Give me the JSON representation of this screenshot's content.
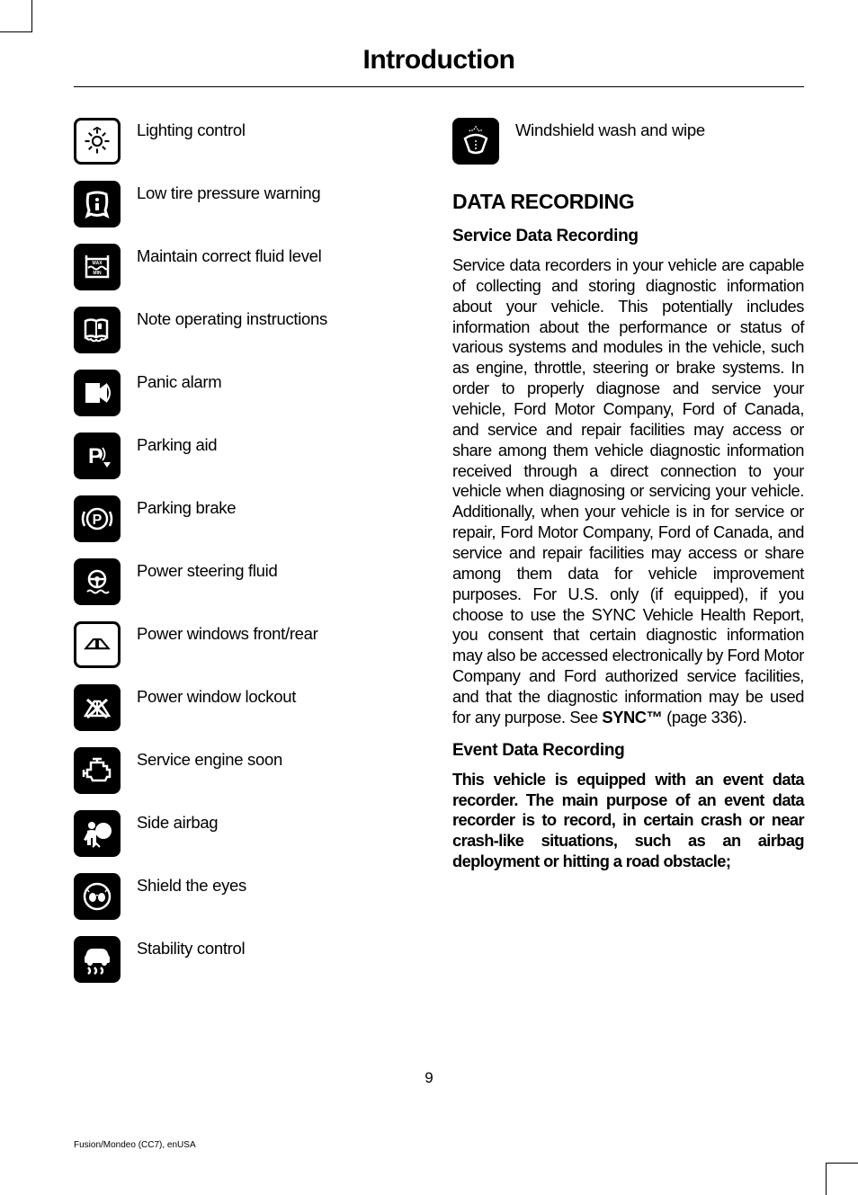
{
  "page": {
    "title": "Introduction",
    "number": "9",
    "footer": "Fusion/Mondeo (CC7), enUSA"
  },
  "left_icons": [
    {
      "name": "lighting-control-icon",
      "label": "Lighting control",
      "style": "outline"
    },
    {
      "name": "low-tire-pressure-icon",
      "label": "Low tire pressure warning",
      "style": "fill"
    },
    {
      "name": "fluid-level-icon",
      "label": "Maintain correct fluid level",
      "style": "fill"
    },
    {
      "name": "note-instructions-icon",
      "label": "Note operating instructions",
      "style": "fill"
    },
    {
      "name": "panic-alarm-icon",
      "label": "Panic alarm",
      "style": "fill"
    },
    {
      "name": "parking-aid-icon",
      "label": "Parking aid",
      "style": "fill"
    },
    {
      "name": "parking-brake-icon",
      "label": "Parking brake",
      "style": "fill"
    },
    {
      "name": "power-steering-fluid-icon",
      "label": "Power steering fluid",
      "style": "fill"
    },
    {
      "name": "power-windows-icon",
      "label": "Power windows front/rear",
      "style": "outline"
    },
    {
      "name": "power-window-lockout-icon",
      "label": "Power window lockout",
      "style": "fill"
    },
    {
      "name": "service-engine-icon",
      "label": "Service engine soon",
      "style": "fill"
    },
    {
      "name": "side-airbag-icon",
      "label": "Side airbag",
      "style": "fill"
    },
    {
      "name": "shield-eyes-icon",
      "label": "Shield the eyes",
      "style": "fill"
    },
    {
      "name": "stability-control-icon",
      "label": "Stability control",
      "style": "fill"
    }
  ],
  "right_icons": [
    {
      "name": "windshield-wash-icon",
      "label": "Windshield wash and wipe",
      "style": "fill"
    }
  ],
  "data_recording": {
    "heading": "DATA RECORDING",
    "service": {
      "heading": "Service Data Recording",
      "body_pre": "Service data recorders in your vehicle are capable of collecting and storing diagnostic information about your vehicle. This potentially includes information about the performance or status of various systems and modules in the vehicle, such as engine, throttle, steering or brake systems. In order to properly diagnose and service your vehicle, Ford Motor Company, Ford of Canada, and service and repair facilities may access or share among them vehicle diagnostic information received through a direct connection to your vehicle when diagnosing or servicing your vehicle. Additionally, when your vehicle is in for service or repair, Ford Motor Company, Ford of Canada, and service and repair facilities may access or share among them data for vehicle improvement purposes. For U.S. only (if equipped), if you choose to use the SYNC Vehicle Health Report, you consent that certain diagnostic information may also be accessed electronically by Ford Motor Company and Ford authorized service facilities, and that the diagnostic information may be used for any purpose.  See ",
      "see_ref": "SYNC™",
      "body_post": " (page 336)."
    },
    "event": {
      "heading": "Event Data Recording",
      "body": "This vehicle is equipped with an event data recorder. The main purpose of an event data recorder is to record, in certain crash or near crash-like situations, such as an airbag deployment or hitting a road obstacle;"
    }
  },
  "icon_svgs": {
    "lighting-control-icon": "<circle cx='19' cy='19' r='6' fill='none' stroke='currentColor' stroke-width='2.5'/><line x1='19' y1='3' x2='19' y2='9' stroke='currentColor' stroke-width='2.5'/><line x1='19' y1='29' x2='19' y2='35' stroke='currentColor' stroke-width='2.5'/><line x1='3' y1='19' x2='9' y2='19' stroke='currentColor' stroke-width='2.5'/><line x1='29' y1='19' x2='35' y2='19' stroke='currentColor' stroke-width='2.5'/><line x1='8' y1='8' x2='12' y2='12' stroke='currentColor' stroke-width='2.5'/><line x1='26' y1='26' x2='30' y2='30' stroke='currentColor' stroke-width='2.5'/><line x1='30' y1='8' x2='26' y2='12' stroke='currentColor' stroke-width='2.5'/><line x1='12' y1='26' x2='8' y2='30' stroke='currentColor' stroke-width='2.5'/><path d='M 14 4 L 19 1 L 24 4' fill='none' stroke='currentColor' stroke-width='2'/>",
    "low-tire-pressure-icon": "<path d='M 9 8 Q 7 18 10 26 L 8 32 L 12 30 Q 19 33 26 30 L 30 32 L 28 26 Q 31 18 29 8 Q 19 4 9 8 Z' fill='none' stroke='currentColor' stroke-width='3'/><circle cx='19' cy='14' r='2' fill='currentColor'/><rect x='17' y='18' width='4' height='8' fill='currentColor'/>",
    "fluid-level-icon": "<rect x='7' y='10' width='24' height='20' fill='none' stroke='currentColor' stroke-width='2.5'/><line x1='7' y1='6' x2='7' y2='10' stroke='currentColor' stroke-width='2.5'/><line x1='31' y1='6' x2='31' y2='10' stroke='currentColor' stroke-width='2.5'/><path d='M 9 20 Q 12 17 15 20 T 21 20 T 27 20 T 31 20' fill='none' stroke='currentColor' stroke-width='2'/><text x='19' y='16' font-size='5' fill='currentColor' text-anchor='middle' font-weight='bold'>MAX</text><text x='19' y='27' font-size='5' fill='currentColor' text-anchor='middle' font-weight='bold'>MIN</text>",
    "note-instructions-icon": "<path d='M 6 9 Q 12 6 18 9 Q 24 6 30 9 L 30 27 Q 24 24 18 27 Q 12 24 6 27 Z' fill='none' stroke='currentColor' stroke-width='2.5'/><line x1='18' y1='9' x2='18' y2='27' stroke='currentColor' stroke-width='2'/><rect x='20' y='12' width='4' height='6' fill='currentColor'/><circle cx='22' cy='13' r='1.5' fill='currentColor'/><path d='M 6 27 Q 9 31 12 29 Q 15 33 18 30 Q 21 33 24 29 Q 27 31 30 27' fill='none' stroke='currentColor' stroke-width='2'/>",
    "panic-alarm-icon": "<path d='M 6 8 L 6 30 L 22 30 L 22 8 Z' fill='currentColor'/><path d='M 22 14 L 30 8 L 30 30 L 22 24 Z' fill='currentColor'/><path d='M 26 12 Q 32 19 26 26' fill='none' stroke='currentColor' stroke-width='2'/><path d='M 29 9 Q 37 19 29 29' fill='none' stroke='currentColor' stroke-width='2'/>",
    "parking-aid-icon": "<text x='9' y='27' font-size='24' fill='currentColor' font-weight='bold' font-family='Arial'>P</text><path d='M 22 12 Q 26 17 22 22' fill='none' stroke='currentColor' stroke-width='1.8'/><path d='M 25 10 Q 30 17 25 24' fill='none' stroke='currentColor' stroke-width='1.8'/><path d='M 26 26 L 34 26 L 30 32 Z' fill='currentColor'/>",
    "parking-brake-icon": "<circle cx='19' cy='19' r='11' fill='none' stroke='currentColor' stroke-width='2.5'/><path d='M 5 11 Q 1 19 5 27' fill='none' stroke='currentColor' stroke-width='2.5'/><path d='M 33 11 Q 37 19 33 27' fill='none' stroke='currentColor' stroke-width='2.5'/><text x='19' y='25' font-size='16' fill='currentColor' text-anchor='middle' font-weight='bold'>P</text>",
    "power-steering-fluid-icon": "<circle cx='19' cy='16' r='9' fill='none' stroke='currentColor' stroke-width='2.5'/><circle cx='19' cy='16' r='3' fill='currentColor'/><line x1='10' y1='16' x2='16' y2='16' stroke='currentColor' stroke-width='2.5'/><line x1='22' y1='16' x2='28' y2='16' stroke='currentColor' stroke-width='2.5'/><line x1='19' y1='19' x2='19' y2='25' stroke='currentColor' stroke-width='2.5'/><path d='M 8 30 Q 11 27 14 30 T 20 30 T 26 30 T 32 30' fill='none' stroke='currentColor' stroke-width='2'/>",
    "power-windows-icon": "<path d='M 4 24 L 14 12 L 18 12 L 18 24 Z' fill='none' stroke='currentColor' stroke-width='2.5'/><path d='M 20 24 L 20 12 L 24 12 L 34 24 Z' fill='none' stroke='currentColor' stroke-width='2.5'/>",
    "power-window-lockout-icon": "<path d='M 6 28 L 16 12 L 22 12 L 32 28 Z' fill='none' stroke='currentColor' stroke-width='2.5'/><line x1='19' y1='12' x2='19' y2='28' stroke='currentColor' stroke-width='2'/><line x1='8' y1='10' x2='30' y2='30' stroke='currentColor' stroke-width='3'/><line x1='30' y1='10' x2='8' y2='30' stroke='currentColor' stroke-width='3'/>",
    "service-engine-icon": "<path d='M 12 10 L 26 10 L 26 14 L 30 14 L 30 18 L 33 18 L 33 26 L 30 26 L 28 30 L 14 30 L 12 26 L 8 26 L 8 18 L 12 18 Z' fill='none' stroke='currentColor' stroke-width='2.5'/><line x1='14' y1='6' x2='24' y2='6' stroke='currentColor' stroke-width='2.5'/><line x1='19' y1='6' x2='19' y2='10' stroke='currentColor' stroke-width='2.5'/><line x1='4' y1='18' x2='4' y2='26' stroke='currentColor' stroke-width='2.5'/><line x1='4' y1='22' x2='8' y2='22' stroke='currentColor' stroke-width='2.5'/>",
    "side-airbag-icon": "<circle cx='13' cy='10' r='4' fill='currentColor'/><path d='M 8 16 Q 13 14 18 16 L 18 32 L 14 32 L 14 24 L 12 24 L 12 32 L 8 32 Z' fill='currentColor'/><path d='M 8 18 L 4 26 L 7 27 L 10 22' fill='currentColor'/><circle cx='26' cy='16' r='9' fill='currentColor'/><path d='M 14 34 L 18 30 L 22 34' fill='none' stroke='currentColor' stroke-width='2'/>",
    "shield-eyes-icon": "<circle cx='19' cy='19' r='14' fill='none' stroke='currentColor' stroke-width='2.5'/><ellipse cx='14' cy='20' rx='4' ry='5' fill='currentColor'/><ellipse cx='24' cy='20' rx='4' ry='5' fill='currentColor'/><path d='M 18 18 Q 19 17 20 18' fill='none' stroke='currentColor' stroke-width='1.5'/><path d='M 10 14 L 8 11' stroke='currentColor' stroke-width='1.5'/><path d='M 28 14 L 30 11' stroke='currentColor' stroke-width='1.5'/>",
    "stability-control-icon": "<path d='M 8 10 Q 10 7 14 7 L 24 7 Q 28 7 30 10 L 32 15 L 6 15 Z' fill='currentColor'/><rect x='5' y='15' width='28' height='8' rx='2' fill='currentColor'/><circle cx='11' cy='23' r='3' fill='currentColor'/><circle cx='27' cy='23' r='3' fill='currentColor'/><path d='M 9 28 Q 13 32 9 35' fill='none' stroke='currentColor' stroke-width='2.5'/><path d='M 16 28 Q 20 32 16 35' fill='none' stroke='currentColor' stroke-width='2.5'/><path d='M 23 28 Q 27 32 23 35' fill='none' stroke='currentColor' stroke-width='2.5'/>",
    "windshield-wash-icon": "<path d='M 7 16 Q 19 8 31 16 L 26 30 Q 19 34 12 30 Z' fill='none' stroke='currentColor' stroke-width='2.5'/><line x1='19' y1='18' x2='19' y2='28' stroke='currentColor' stroke-width='1.5' stroke-dasharray='2 2'/><path d='M 12 8 Q 14 5 16 8' fill='none' stroke='currentColor' stroke-width='1.5' stroke-dasharray='1.5 1.5'/><path d='M 22 8 Q 24 5 26 8' fill='none' stroke='currentColor' stroke-width='1.5' stroke-dasharray='1.5 1.5'/><path d='M 17 6 L 19 3 L 21 6' fill='none' stroke='currentColor' stroke-width='1.5' stroke-dasharray='1.5 1.5'/>"
  }
}
